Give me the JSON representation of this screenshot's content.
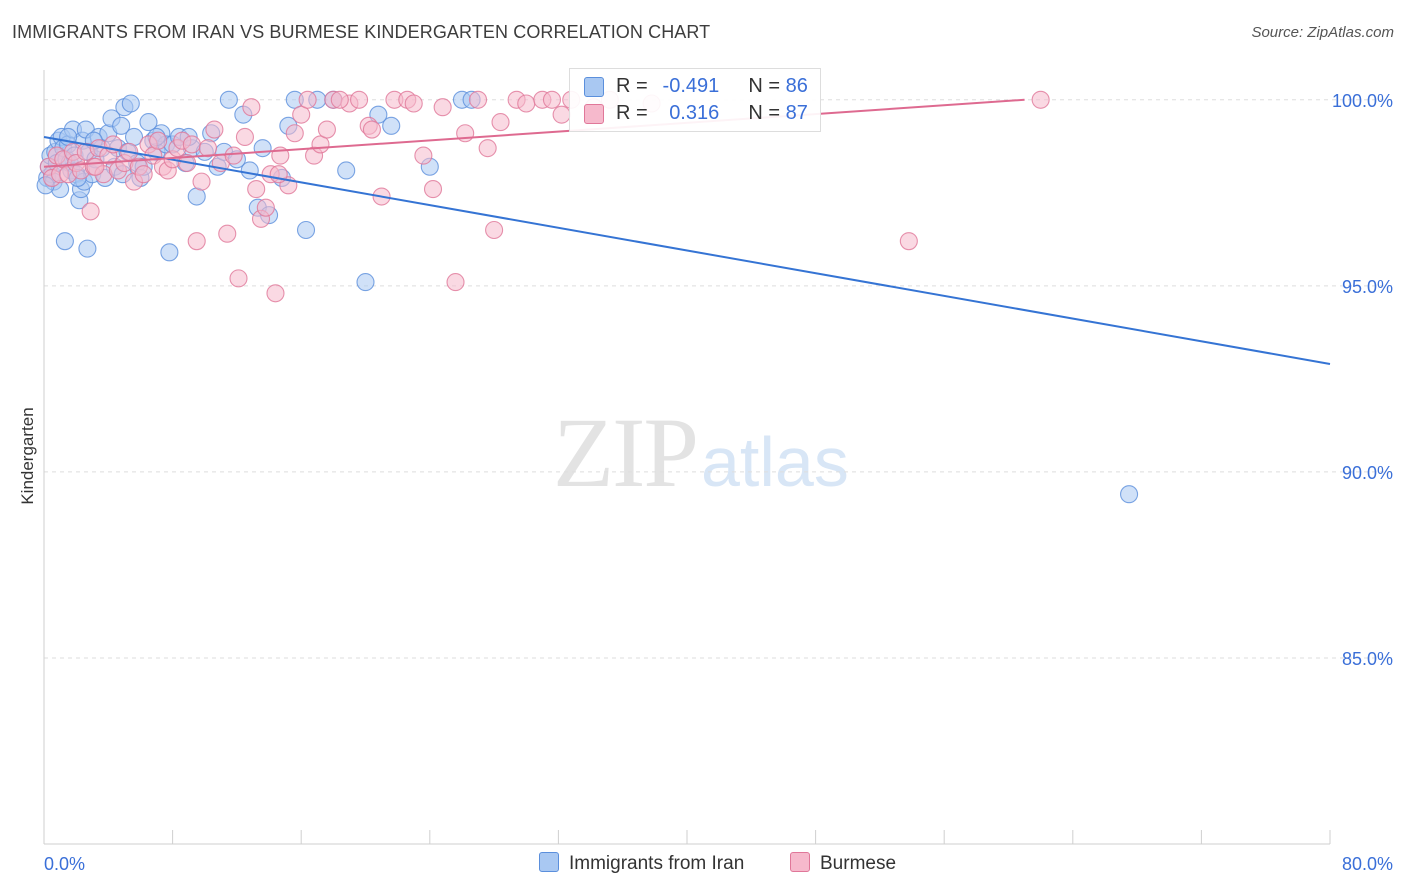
{
  "header": {
    "title": "IMMIGRANTS FROM IRAN VS BURMESE KINDERGARTEN CORRELATION CHART",
    "source": "Source: ZipAtlas.com"
  },
  "watermark": {
    "zip": "ZIP",
    "atlas": "atlas"
  },
  "legend": {
    "rows": [
      {
        "r_label": "R =",
        "r_value": "-0.491",
        "n_label": "N =",
        "n_value": "86",
        "color": "#a9c8f2"
      },
      {
        "r_label": "R =",
        "r_value": "0.316",
        "n_label": "N =",
        "n_value": "87",
        "color": "#f6b9cc"
      }
    ]
  },
  "bottom_legend": {
    "items": [
      {
        "label": "Immigrants from Iran",
        "color": "#a9c8f2"
      },
      {
        "label": "Burmese",
        "color": "#f6b9cc"
      }
    ]
  },
  "chart_data": {
    "type": "scatter",
    "title": "IMMIGRANTS FROM IRAN VS BURMESE KINDERGARTEN CORRELATION CHART",
    "xlabel": "",
    "ylabel": "Kindergarten",
    "xlim": [
      0,
      80
    ],
    "ylim": [
      80,
      100.8
    ],
    "x_tick_labels": [
      {
        "value": 0,
        "label": "0.0%"
      },
      {
        "value": 80,
        "label": "80.0%"
      }
    ],
    "y_tick_labels": [
      {
        "value": 100,
        "label": "100.0%"
      },
      {
        "value": 95,
        "label": "95.0%"
      },
      {
        "value": 90,
        "label": "90.0%"
      },
      {
        "value": 85,
        "label": "85.0%"
      }
    ],
    "grid": true,
    "legend_position": "top-center",
    "series": [
      {
        "name": "Immigrants from Iran",
        "color": "#5b8fdc",
        "fill": "#a9c8f2",
        "trend": {
          "x": [
            0,
            80
          ],
          "y": [
            99.0,
            92.9
          ]
        },
        "points": [
          [
            0.2,
            97.9
          ],
          [
            0.3,
            98.2
          ],
          [
            0.4,
            98.5
          ],
          [
            0.5,
            98.0
          ],
          [
            0.6,
            97.8
          ],
          [
            0.7,
            98.6
          ],
          [
            0.8,
            98.3
          ],
          [
            0.9,
            98.9
          ],
          [
            1.0,
            97.6
          ],
          [
            1.1,
            99.0
          ],
          [
            1.2,
            98.7
          ],
          [
            1.3,
            96.2
          ],
          [
            1.4,
            98.4
          ],
          [
            1.5,
            98.8
          ],
          [
            1.6,
            98.3
          ],
          [
            1.7,
            98.1
          ],
          [
            1.8,
            99.2
          ],
          [
            1.9,
            98.5
          ],
          [
            2.0,
            98.0
          ],
          [
            2.2,
            97.3
          ],
          [
            2.3,
            97.6
          ],
          [
            2.4,
            98.9
          ],
          [
            2.5,
            97.8
          ],
          [
            2.6,
            99.2
          ],
          [
            2.7,
            96.0
          ],
          [
            2.8,
            98.6
          ],
          [
            3.0,
            98.0
          ],
          [
            3.2,
            98.4
          ],
          [
            3.4,
            99.0
          ],
          [
            3.6,
            98.7
          ],
          [
            3.8,
            97.9
          ],
          [
            4.0,
            99.1
          ],
          [
            4.2,
            99.5
          ],
          [
            4.4,
            98.2
          ],
          [
            4.6,
            98.7
          ],
          [
            4.8,
            99.3
          ],
          [
            5.0,
            99.8
          ],
          [
            5.2,
            98.6
          ],
          [
            5.4,
            99.9
          ],
          [
            5.6,
            99.0
          ],
          [
            5.8,
            98.3
          ],
          [
            6.0,
            97.9
          ],
          [
            6.5,
            99.4
          ],
          [
            6.8,
            98.9
          ],
          [
            7.0,
            98.6
          ],
          [
            7.3,
            99.1
          ],
          [
            7.6,
            98.8
          ],
          [
            7.8,
            95.9
          ],
          [
            8.0,
            98.8
          ],
          [
            8.4,
            99.0
          ],
          [
            8.8,
            98.3
          ],
          [
            9.2,
            98.7
          ],
          [
            9.5,
            97.4
          ],
          [
            10.0,
            98.6
          ],
          [
            10.4,
            99.1
          ],
          [
            10.8,
            98.2
          ],
          [
            11.2,
            98.6
          ],
          [
            11.5,
            100.0
          ],
          [
            12.0,
            98.4
          ],
          [
            12.4,
            99.6
          ],
          [
            12.8,
            98.1
          ],
          [
            13.3,
            97.1
          ],
          [
            13.6,
            98.7
          ],
          [
            14.0,
            96.9
          ],
          [
            14.8,
            97.9
          ],
          [
            15.2,
            99.3
          ],
          [
            15.6,
            100.0
          ],
          [
            16.3,
            96.5
          ],
          [
            17.0,
            100.0
          ],
          [
            18.0,
            100.0
          ],
          [
            18.8,
            98.1
          ],
          [
            20.0,
            95.1
          ],
          [
            20.8,
            99.6
          ],
          [
            21.6,
            99.3
          ],
          [
            24.0,
            98.2
          ],
          [
            26.0,
            100.0
          ],
          [
            26.6,
            100.0
          ],
          [
            4.9,
            98.0
          ],
          [
            6.2,
            98.2
          ],
          [
            3.1,
            98.9
          ],
          [
            1.5,
            99.0
          ],
          [
            2.1,
            97.9
          ],
          [
            9.0,
            99.0
          ],
          [
            7.0,
            99.0
          ],
          [
            0.1,
            97.7
          ],
          [
            67.5,
            89.4
          ]
        ]
      },
      {
        "name": "Burmese",
        "color": "#e07799",
        "fill": "#f6b9cc",
        "trend": {
          "x": [
            0,
            61
          ],
          "y": [
            98.2,
            100.0
          ]
        },
        "points": [
          [
            0.3,
            98.2
          ],
          [
            0.5,
            97.9
          ],
          [
            0.8,
            98.5
          ],
          [
            1.0,
            98.0
          ],
          [
            1.2,
            98.4
          ],
          [
            1.5,
            98.0
          ],
          [
            1.8,
            98.6
          ],
          [
            2.0,
            98.3
          ],
          [
            2.3,
            98.1
          ],
          [
            2.6,
            98.6
          ],
          [
            2.9,
            97.0
          ],
          [
            3.1,
            98.2
          ],
          [
            3.4,
            98.7
          ],
          [
            3.7,
            98.0
          ],
          [
            4.0,
            98.5
          ],
          [
            4.3,
            98.8
          ],
          [
            4.6,
            98.1
          ],
          [
            5.0,
            98.3
          ],
          [
            5.3,
            98.6
          ],
          [
            5.6,
            97.8
          ],
          [
            5.9,
            98.2
          ],
          [
            6.2,
            98.0
          ],
          [
            6.5,
            98.8
          ],
          [
            6.8,
            98.5
          ],
          [
            7.1,
            98.9
          ],
          [
            7.4,
            98.2
          ],
          [
            7.7,
            98.1
          ],
          [
            8.0,
            98.4
          ],
          [
            8.3,
            98.7
          ],
          [
            8.6,
            98.9
          ],
          [
            8.9,
            98.3
          ],
          [
            9.2,
            98.8
          ],
          [
            9.5,
            96.2
          ],
          [
            9.8,
            97.8
          ],
          [
            10.2,
            98.7
          ],
          [
            10.6,
            99.2
          ],
          [
            11.0,
            98.3
          ],
          [
            11.4,
            96.4
          ],
          [
            11.8,
            98.5
          ],
          [
            12.1,
            95.2
          ],
          [
            12.5,
            99.0
          ],
          [
            12.9,
            99.8
          ],
          [
            13.2,
            97.6
          ],
          [
            13.5,
            96.8
          ],
          [
            13.8,
            97.1
          ],
          [
            14.1,
            98.0
          ],
          [
            14.4,
            94.8
          ],
          [
            14.7,
            98.5
          ],
          [
            15.2,
            97.7
          ],
          [
            15.6,
            99.1
          ],
          [
            16.0,
            99.6
          ],
          [
            16.4,
            100.0
          ],
          [
            16.8,
            98.5
          ],
          [
            17.2,
            98.8
          ],
          [
            17.6,
            99.2
          ],
          [
            18.0,
            100.0
          ],
          [
            19.0,
            99.9
          ],
          [
            19.6,
            100.0
          ],
          [
            20.2,
            99.3
          ],
          [
            21.0,
            97.4
          ],
          [
            21.8,
            100.0
          ],
          [
            22.6,
            100.0
          ],
          [
            23.0,
            99.9
          ],
          [
            23.6,
            98.5
          ],
          [
            24.2,
            97.6
          ],
          [
            24.8,
            99.8
          ],
          [
            25.6,
            95.1
          ],
          [
            26.2,
            99.1
          ],
          [
            27.0,
            100.0
          ],
          [
            27.6,
            98.7
          ],
          [
            28.0,
            96.5
          ],
          [
            28.4,
            99.4
          ],
          [
            29.4,
            100.0
          ],
          [
            30.0,
            99.9
          ],
          [
            31.0,
            100.0
          ],
          [
            31.6,
            100.0
          ],
          [
            32.2,
            99.6
          ],
          [
            32.8,
            100.0
          ],
          [
            34.2,
            99.8
          ],
          [
            35.2,
            100.0
          ],
          [
            37.8,
            99.9
          ],
          [
            53.8,
            96.2
          ],
          [
            62.0,
            100.0
          ],
          [
            3.2,
            98.2
          ],
          [
            14.6,
            98.0
          ],
          [
            20.4,
            99.2
          ],
          [
            18.4,
            100.0
          ]
        ]
      }
    ]
  }
}
